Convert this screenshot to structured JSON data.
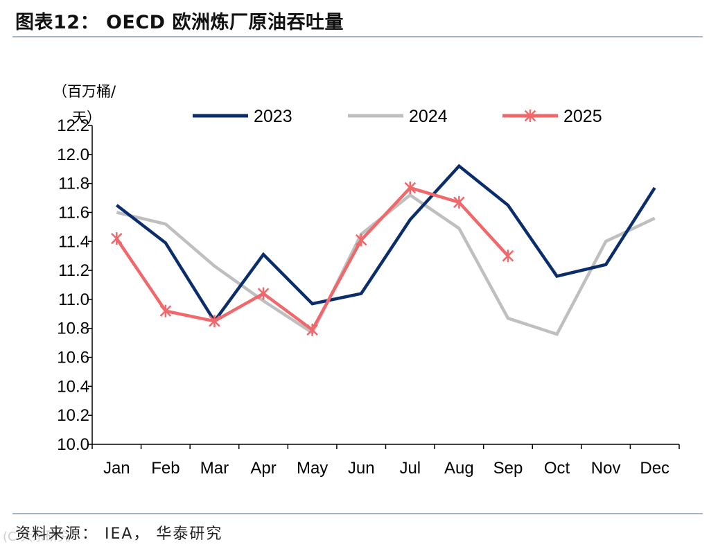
{
  "header": {
    "title": "图表12：  OECD 欧洲炼厂原油吞吐量"
  },
  "footer": {
    "source": "资料来源： IEA， 华泰研究",
    "watermark": "(C 大宗研究"
  },
  "chart_data": {
    "type": "line",
    "title": "OECD 欧洲炼厂原油吞吐量",
    "unit_label_line1": "（百万桶/",
    "unit_label_line2": "天）",
    "ylabel": "百万桶/天",
    "xlabel": "",
    "ylim": [
      10.0,
      12.2
    ],
    "ytick_step": 0.2,
    "y_ticks": [
      "10.0",
      "10.2",
      "10.4",
      "10.6",
      "10.8",
      "11.0",
      "11.2",
      "11.4",
      "11.6",
      "11.8",
      "12.0",
      "12.2"
    ],
    "categories": [
      "Jan",
      "Feb",
      "Mar",
      "Apr",
      "May",
      "Jun",
      "Jul",
      "Aug",
      "Sep",
      "Oct",
      "Nov",
      "Dec"
    ],
    "legend_position": "top",
    "grid": false,
    "series": [
      {
        "name": "2023",
        "color": "#0b2d6b",
        "marker": "none",
        "values": [
          11.65,
          11.39,
          10.85,
          11.31,
          10.97,
          11.04,
          11.55,
          11.92,
          11.65,
          11.16,
          11.24,
          11.77
        ]
      },
      {
        "name": "2024",
        "color": "#bfbfbf",
        "marker": "none",
        "values": [
          11.6,
          11.52,
          11.23,
          10.99,
          10.77,
          11.45,
          11.72,
          11.49,
          10.87,
          10.76,
          11.4,
          11.56
        ]
      },
      {
        "name": "2025",
        "color": "#f0686b",
        "marker": "star",
        "values": [
          11.42,
          10.92,
          10.85,
          11.04,
          10.79,
          11.41,
          11.77,
          11.67,
          11.3,
          null,
          null,
          null
        ]
      }
    ]
  }
}
